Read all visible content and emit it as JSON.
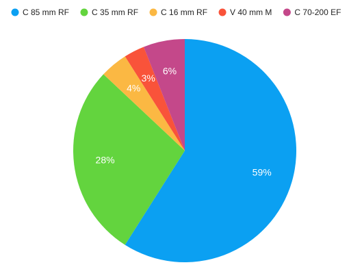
{
  "chart_data": {
    "type": "pie",
    "categories": [
      "C 85 mm RF",
      "C 35 mm RF",
      "C 16 mm RF",
      "V 40 mm M",
      "C 70-200 EF"
    ],
    "values": [
      59,
      28,
      4,
      3,
      6
    ],
    "value_labels": [
      "59%",
      "28%",
      "4%",
      "3%",
      "6%"
    ],
    "colors": [
      "#0ba0f2",
      "#63d43e",
      "#fbb843",
      "#f9533a",
      "#c4488a"
    ],
    "legend": "top"
  }
}
